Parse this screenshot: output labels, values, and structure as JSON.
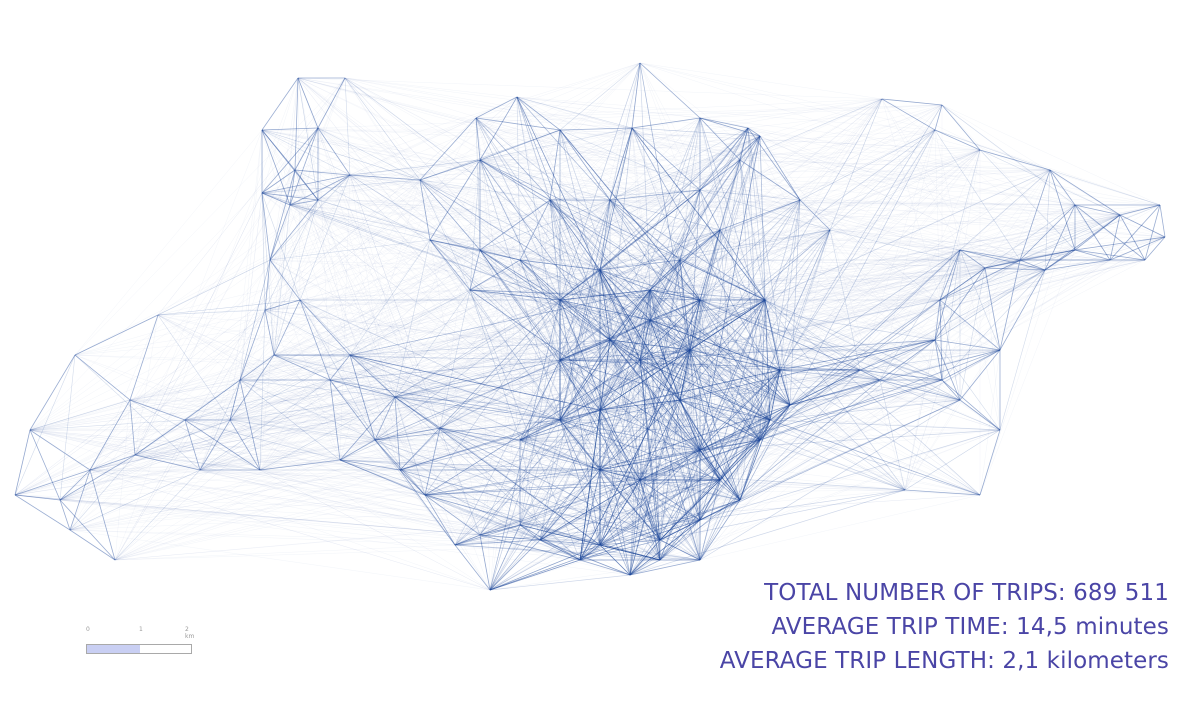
{
  "stats": {
    "total_trips": "TOTAL NUMBER OF TRIPS: 689 511",
    "avg_time": "AVERAGE TRIP TIME: 14,5 minutes",
    "avg_length": "AVERAGE TRIP LENGTH: 2,1 kilometers"
  },
  "scale": {
    "tick_0": "0",
    "tick_1": "1",
    "tick_2": "2 km"
  },
  "colors": {
    "network_line": "#1f4a9c",
    "stats_text": "#4a45a6",
    "scale_fill": "#c9cff3"
  }
}
